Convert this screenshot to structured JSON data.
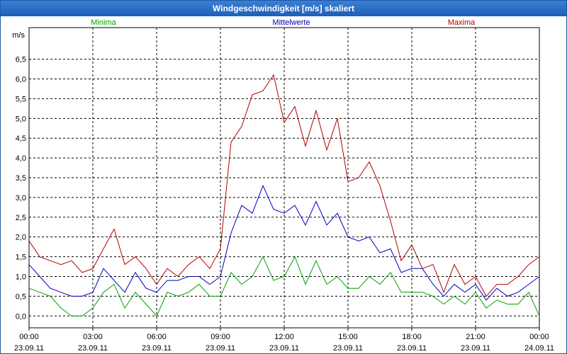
{
  "window": {
    "title": "Windgeschwindigkeit [m/s] skaliert"
  },
  "chart_data": {
    "type": "line",
    "title": "Windgeschwindigkeit [m/s] skaliert",
    "ylabel": "m/s",
    "ylim": [
      -0.3,
      7.3
    ],
    "y_ticks": [
      0.0,
      0.5,
      1.0,
      1.5,
      2.0,
      2.5,
      3.0,
      3.5,
      4.0,
      4.5,
      5.0,
      5.5,
      6.0,
      6.5
    ],
    "y_tick_labels": [
      "0,0",
      "0,5",
      "1,0",
      "1,5",
      "2,0",
      "2,5",
      "3,0",
      "3,5",
      "4,0",
      "4,5",
      "5,0",
      "5,5",
      "6,0",
      "6,5"
    ],
    "x_range_hours": [
      0,
      24
    ],
    "x_ticks": [
      {
        "hour": 0,
        "time": "00:00",
        "date": "23.09.11"
      },
      {
        "hour": 3,
        "time": "03:00",
        "date": "23.09.11"
      },
      {
        "hour": 6,
        "time": "06:00",
        "date": "23.09.11"
      },
      {
        "hour": 9,
        "time": "09:00",
        "date": "23.09.11"
      },
      {
        "hour": 12,
        "time": "12:00",
        "date": "23.09.11"
      },
      {
        "hour": 15,
        "time": "15:00",
        "date": "23.09.11"
      },
      {
        "hour": 18,
        "time": "18:00",
        "date": "23.09.11"
      },
      {
        "hour": 21,
        "time": "21:00",
        "date": "23.09.11"
      },
      {
        "hour": 24,
        "time": "00:00",
        "date": "24.09.11"
      }
    ],
    "grid": true,
    "legend_position": "top",
    "x": [
      0,
      0.5,
      1,
      1.5,
      2,
      2.5,
      3,
      3.5,
      4,
      4.5,
      5,
      5.5,
      6,
      6.5,
      7,
      7.5,
      8,
      8.5,
      9,
      9.5,
      10,
      10.5,
      11,
      11.5,
      12,
      12.5,
      13,
      13.5,
      14,
      14.5,
      15,
      15.5,
      16,
      16.5,
      17,
      17.5,
      18,
      18.5,
      19,
      19.5,
      20,
      20.5,
      21,
      21.5,
      22,
      22.5,
      23,
      23.5,
      24
    ],
    "series": [
      {
        "name": "Minima",
        "color": "#00a000",
        "values": [
          0.7,
          0.6,
          0.5,
          0.2,
          0.0,
          0.0,
          0.2,
          0.6,
          0.8,
          0.2,
          0.6,
          0.3,
          0.0,
          0.6,
          0.5,
          0.6,
          0.8,
          0.5,
          0.5,
          1.1,
          0.8,
          1.0,
          1.5,
          0.9,
          1.0,
          1.5,
          0.8,
          1.4,
          0.8,
          1.0,
          0.7,
          0.7,
          1.0,
          0.8,
          1.1,
          0.6,
          0.6,
          0.6,
          0.5,
          0.3,
          0.5,
          0.3,
          0.6,
          0.2,
          0.4,
          0.3,
          0.3,
          0.6,
          0.0
        ]
      },
      {
        "name": "Mittelwerte",
        "color": "#0000c0",
        "values": [
          1.3,
          1.0,
          0.7,
          0.6,
          0.5,
          0.5,
          0.6,
          1.2,
          0.9,
          0.6,
          1.1,
          0.7,
          0.6,
          0.9,
          0.9,
          1.0,
          1.0,
          0.8,
          1.0,
          2.1,
          2.8,
          2.6,
          3.3,
          2.7,
          2.6,
          2.8,
          2.3,
          2.9,
          2.3,
          2.6,
          2.0,
          1.9,
          2.0,
          1.6,
          1.7,
          1.1,
          1.2,
          1.2,
          0.8,
          0.5,
          0.8,
          0.6,
          0.8,
          0.4,
          0.7,
          0.5,
          0.6,
          0.8,
          1.0
        ]
      },
      {
        "name": "Maxima",
        "color": "#b00000",
        "values": [
          1.9,
          1.5,
          1.4,
          1.3,
          1.4,
          1.1,
          1.2,
          1.7,
          2.2,
          1.3,
          1.5,
          1.2,
          0.8,
          1.2,
          1.0,
          1.3,
          1.5,
          1.2,
          1.7,
          4.4,
          4.8,
          5.6,
          5.7,
          6.1,
          4.9,
          5.3,
          4.3,
          5.2,
          4.2,
          5.0,
          3.4,
          3.5,
          3.9,
          3.3,
          2.4,
          1.4,
          1.8,
          1.2,
          1.3,
          0.6,
          1.3,
          0.8,
          1.0,
          0.5,
          0.8,
          0.8,
          1.0,
          1.3,
          1.5
        ]
      }
    ]
  }
}
